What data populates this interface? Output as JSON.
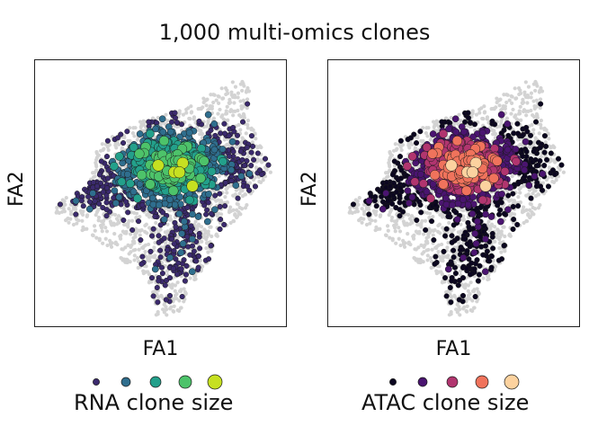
{
  "title": "1,000 multi-omics clones",
  "chart_data": [
    {
      "type": "scatter",
      "xlabel": "FA1",
      "ylabel": "FA2",
      "legend_title": "RNA clone size",
      "colormap": "viridis",
      "legend_colors": [
        "#3b2a6e",
        "#2f6e8e",
        "#23a08b",
        "#4dc36a",
        "#c6e021"
      ],
      "background_color": "#d3d3d3",
      "grid": false
    },
    {
      "type": "scatter",
      "xlabel": "FA1",
      "ylabel": "FA2",
      "legend_title": "ATAC clone size",
      "colormap": "magma",
      "legend_colors": [
        "#0b0620",
        "#4a1470",
        "#b1356f",
        "#f0735c",
        "#fcd29f"
      ],
      "background_color": "#d3d3d3",
      "grid": false
    }
  ]
}
